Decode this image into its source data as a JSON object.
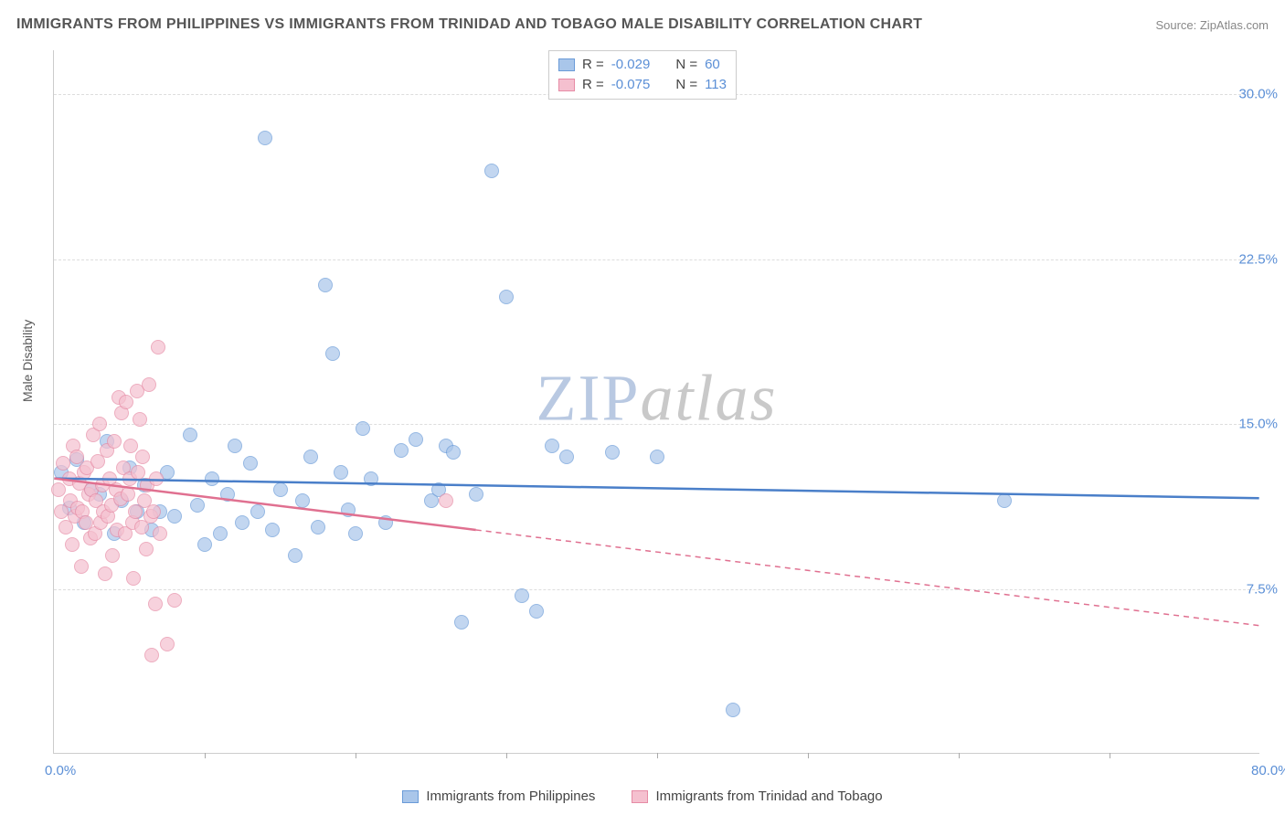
{
  "title": "IMMIGRANTS FROM PHILIPPINES VS IMMIGRANTS FROM TRINIDAD AND TOBAGO MALE DISABILITY CORRELATION CHART",
  "source": "Source: ZipAtlas.com",
  "y_axis_label": "Male Disability",
  "watermark": {
    "part1": "ZIP",
    "part2": "atlas",
    "color1": "#b9c9e2",
    "color2": "#c9c9c9"
  },
  "chart": {
    "type": "scatter",
    "xlim": [
      0,
      80
    ],
    "ylim": [
      0,
      32
    ],
    "x_ticks": [
      {
        "v": 0,
        "l": "0.0%"
      },
      {
        "v": 80,
        "l": "80.0%"
      }
    ],
    "x_minor_ticks": [
      10,
      20,
      30,
      40,
      50,
      60,
      70
    ],
    "y_ticks": [
      {
        "v": 7.5,
        "l": "7.5%"
      },
      {
        "v": 15,
        "l": "15.0%"
      },
      {
        "v": 22.5,
        "l": "22.5%"
      },
      {
        "v": 30,
        "l": "30.0%"
      }
    ],
    "grid_color": "#dddddd",
    "axis_color": "#cccccc",
    "background": "#ffffff",
    "marker_radius": 8,
    "marker_opacity": 0.35,
    "series": [
      {
        "name": "Immigrants from Philippines",
        "fill": "#a9c6ea",
        "stroke": "#6a9bd8",
        "line_color": "#4a7fc9",
        "R": "-0.029",
        "N": "60",
        "trend": {
          "x1": 0,
          "y1": 12.5,
          "x2": 80,
          "y2": 11.6,
          "solid_until": 80
        },
        "points": [
          [
            0.5,
            12.8
          ],
          [
            1,
            11.2
          ],
          [
            1.5,
            13.4
          ],
          [
            2,
            10.5
          ],
          [
            2.5,
            12.0
          ],
          [
            3,
            11.8
          ],
          [
            3.5,
            14.2
          ],
          [
            4,
            10.0
          ],
          [
            4.5,
            11.5
          ],
          [
            5,
            13.0
          ],
          [
            5.5,
            11.0
          ],
          [
            6,
            12.2
          ],
          [
            6.5,
            10.2
          ],
          [
            7,
            11.0
          ],
          [
            7.5,
            12.8
          ],
          [
            8,
            10.8
          ],
          [
            9,
            14.5
          ],
          [
            9.5,
            11.3
          ],
          [
            10,
            9.5
          ],
          [
            10.5,
            12.5
          ],
          [
            11,
            10.0
          ],
          [
            11.5,
            11.8
          ],
          [
            12,
            14.0
          ],
          [
            12.5,
            10.5
          ],
          [
            13,
            13.2
          ],
          [
            13.5,
            11.0
          ],
          [
            14,
            28.0
          ],
          [
            14.5,
            10.2
          ],
          [
            15,
            12.0
          ],
          [
            16,
            9.0
          ],
          [
            16.5,
            11.5
          ],
          [
            17,
            13.5
          ],
          [
            17.5,
            10.3
          ],
          [
            18,
            21.3
          ],
          [
            18.5,
            18.2
          ],
          [
            19,
            12.8
          ],
          [
            19.5,
            11.1
          ],
          [
            20,
            10.0
          ],
          [
            20.5,
            14.8
          ],
          [
            21,
            12.5
          ],
          [
            22,
            10.5
          ],
          [
            23,
            13.8
          ],
          [
            24,
            14.3
          ],
          [
            25,
            11.5
          ],
          [
            25.5,
            12.0
          ],
          [
            26,
            14.0
          ],
          [
            26.5,
            13.7
          ],
          [
            27,
            6.0
          ],
          [
            28,
            11.8
          ],
          [
            29,
            26.5
          ],
          [
            30,
            20.8
          ],
          [
            31,
            7.2
          ],
          [
            32,
            6.5
          ],
          [
            33,
            14.0
          ],
          [
            34,
            13.5
          ],
          [
            37,
            13.7
          ],
          [
            40,
            13.5
          ],
          [
            45,
            2.0
          ],
          [
            63,
            11.5
          ]
        ]
      },
      {
        "name": "Immigrants from Trinidad and Tobago",
        "fill": "#f5c0cf",
        "stroke": "#e68ba5",
        "line_color": "#e07090",
        "R": "-0.075",
        "N": "113",
        "trend": {
          "x1": 0,
          "y1": 12.5,
          "x2": 80,
          "y2": 5.8,
          "solid_until": 28
        },
        "points": [
          [
            0.3,
            12.0
          ],
          [
            0.5,
            11.0
          ],
          [
            0.6,
            13.2
          ],
          [
            0.8,
            10.3
          ],
          [
            1.0,
            12.5
          ],
          [
            1.1,
            11.5
          ],
          [
            1.2,
            9.5
          ],
          [
            1.3,
            14.0
          ],
          [
            1.4,
            10.8
          ],
          [
            1.5,
            13.5
          ],
          [
            1.6,
            11.2
          ],
          [
            1.7,
            12.3
          ],
          [
            1.8,
            8.5
          ],
          [
            1.9,
            11.0
          ],
          [
            2.0,
            12.8
          ],
          [
            2.1,
            10.5
          ],
          [
            2.2,
            13.0
          ],
          [
            2.3,
            11.8
          ],
          [
            2.4,
            9.8
          ],
          [
            2.5,
            12.0
          ],
          [
            2.6,
            14.5
          ],
          [
            2.7,
            10.0
          ],
          [
            2.8,
            11.5
          ],
          [
            2.9,
            13.3
          ],
          [
            3.0,
            15.0
          ],
          [
            3.1,
            10.5
          ],
          [
            3.2,
            12.2
          ],
          [
            3.3,
            11.0
          ],
          [
            3.4,
            8.2
          ],
          [
            3.5,
            13.8
          ],
          [
            3.6,
            10.8
          ],
          [
            3.7,
            12.5
          ],
          [
            3.8,
            11.3
          ],
          [
            3.9,
            9.0
          ],
          [
            4.0,
            14.2
          ],
          [
            4.1,
            12.0
          ],
          [
            4.2,
            10.2
          ],
          [
            4.3,
            16.2
          ],
          [
            4.4,
            11.6
          ],
          [
            4.5,
            15.5
          ],
          [
            4.6,
            13.0
          ],
          [
            4.7,
            10.0
          ],
          [
            4.8,
            16.0
          ],
          [
            4.9,
            11.8
          ],
          [
            5.0,
            12.5
          ],
          [
            5.1,
            14.0
          ],
          [
            5.2,
            10.5
          ],
          [
            5.3,
            8.0
          ],
          [
            5.4,
            11.0
          ],
          [
            5.5,
            16.5
          ],
          [
            5.6,
            12.8
          ],
          [
            5.7,
            15.2
          ],
          [
            5.8,
            10.3
          ],
          [
            5.9,
            13.5
          ],
          [
            6.0,
            11.5
          ],
          [
            6.1,
            9.3
          ],
          [
            6.2,
            12.2
          ],
          [
            6.3,
            16.8
          ],
          [
            6.4,
            10.8
          ],
          [
            6.5,
            4.5
          ],
          [
            6.6,
            11.0
          ],
          [
            6.7,
            6.8
          ],
          [
            6.8,
            12.5
          ],
          [
            6.9,
            18.5
          ],
          [
            7.0,
            10.0
          ],
          [
            7.5,
            5.0
          ],
          [
            8.0,
            7.0
          ],
          [
            26,
            11.5
          ]
        ]
      }
    ]
  },
  "legend_labels": {
    "r": "R =",
    "n": "N ="
  }
}
